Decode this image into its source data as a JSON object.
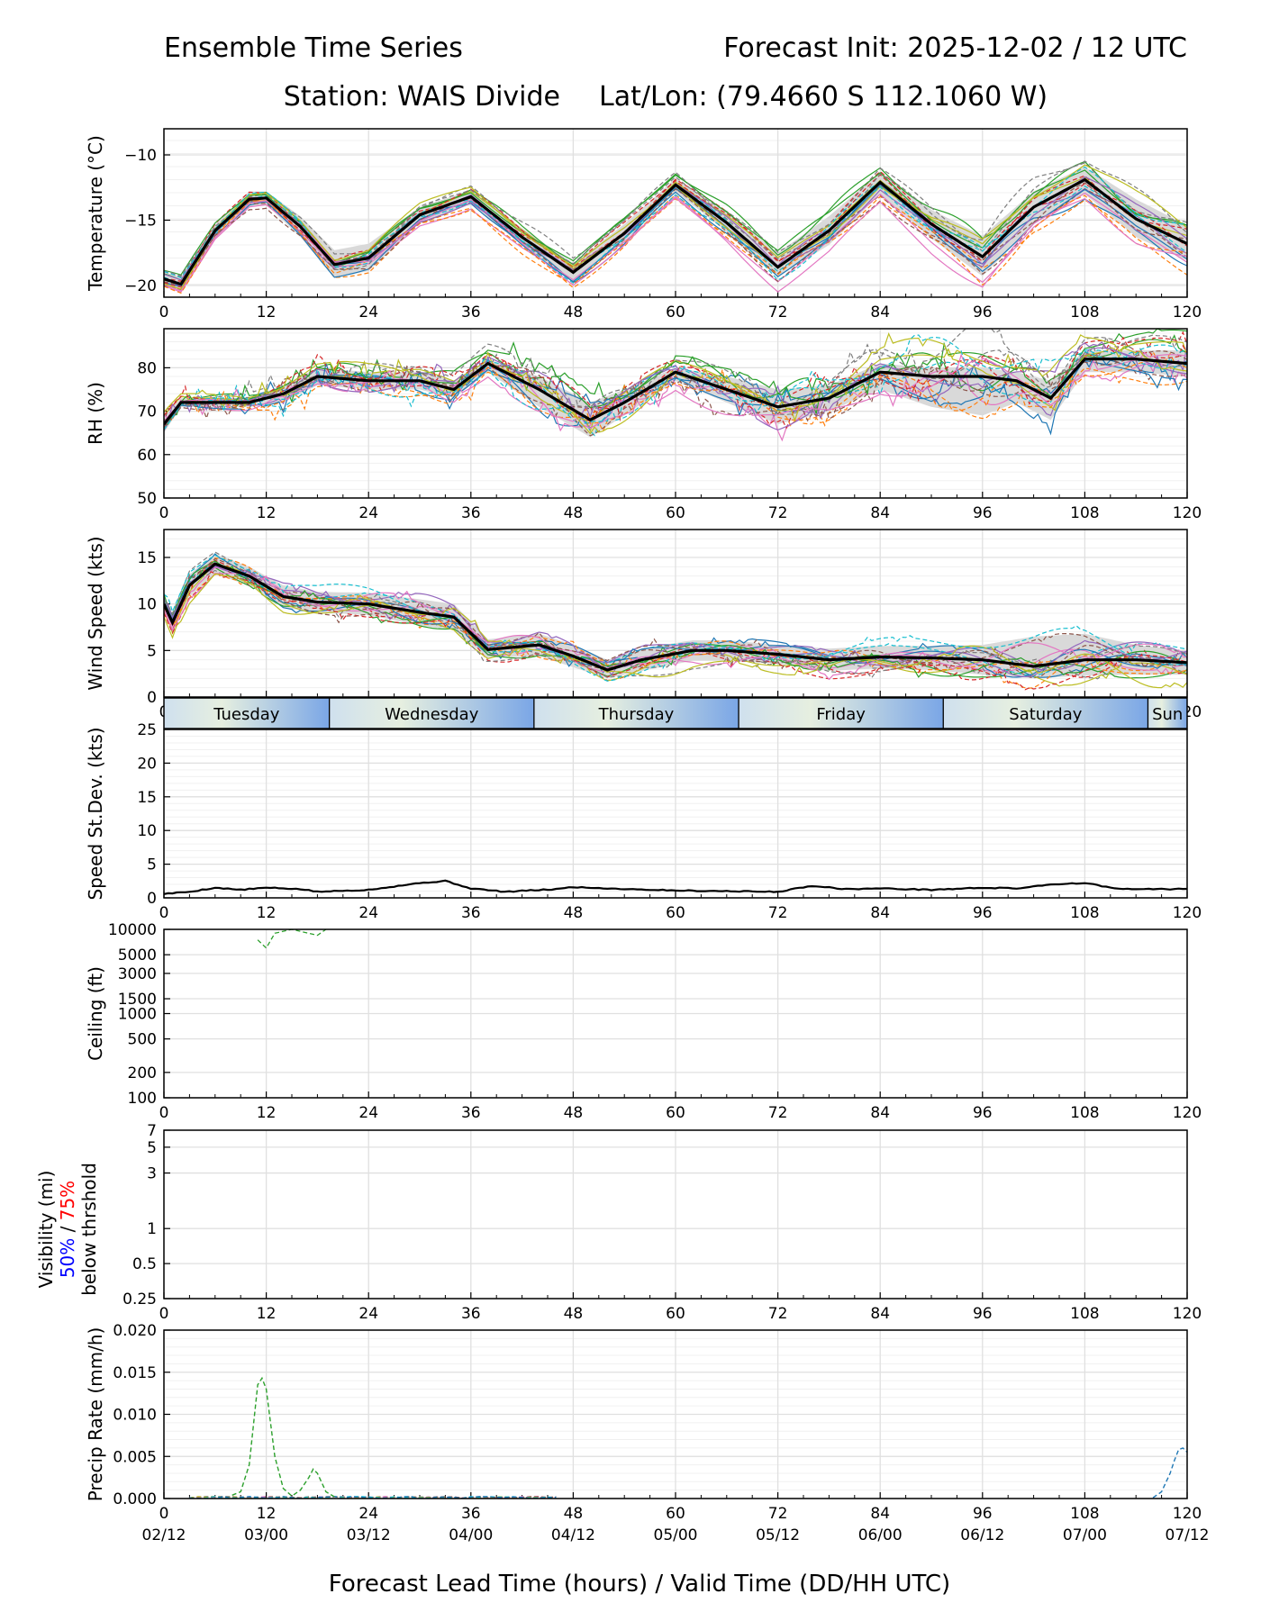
{
  "header": {
    "title_left": "Ensemble Time Series",
    "title_right": "Forecast Init: 2025-12-02 / 12 UTC",
    "station": "Station: WAIS Divide",
    "latlon": "Lat/Lon: (79.4660 S 112.1060 W)"
  },
  "xaxis": {
    "label": "Forecast Lead Time (hours) / Valid Time (DD/HH UTC)",
    "xlim": [
      0,
      120
    ],
    "ticks": [
      0,
      12,
      24,
      36,
      48,
      60,
      72,
      84,
      96,
      108,
      120
    ],
    "tick_labels": [
      "0",
      "12",
      "24",
      "36",
      "48",
      "60",
      "72",
      "84",
      "96",
      "108",
      "120"
    ],
    "valid_time_labels": [
      "02/12",
      "03/00",
      "03/12",
      "04/00",
      "04/12",
      "05/00",
      "05/12",
      "06/00",
      "06/12",
      "07/00",
      "07/12"
    ]
  },
  "days_strip": {
    "labels": [
      "Tuesday",
      "Wednesday",
      "Thursday",
      "Friday",
      "Saturday",
      "Sun"
    ],
    "boundaries_hours": [
      19.4,
      43.4,
      67.4,
      91.4,
      115.4
    ]
  },
  "visibility_label": {
    "main": "Visibility (mi)",
    "p50": "50%",
    "sep": " / ",
    "p75": "75%",
    "sub": "below thrshold",
    "p50_color": "#0000ff",
    "p75_color": "#ff0000"
  },
  "colors": {
    "mean": "#000000",
    "spread": "#d9d9d9",
    "grid": "#e0e0e0",
    "members": [
      "#1f77b4",
      "#ff7f0e",
      "#2ca02c",
      "#d62728",
      "#9467bd",
      "#8c564b",
      "#e377c2",
      "#7f7f7f",
      "#bcbd22",
      "#17becf"
    ]
  },
  "chart_data": [
    {
      "type": "line",
      "name": "temperature",
      "ylabel": "Temperature (°C)",
      "ylim": [
        -20.9,
        -8
      ],
      "yticks": [
        -20,
        -15,
        -10
      ],
      "ytick_labels": [
        "−20",
        "−15",
        "−10"
      ],
      "x": [
        0,
        2,
        6,
        10,
        12,
        16,
        20,
        24,
        30,
        36,
        42,
        48,
        54,
        60,
        66,
        72,
        78,
        84,
        90,
        96,
        102,
        108,
        114,
        120
      ],
      "mean": [
        -19.5,
        -19.9,
        -15.8,
        -13.4,
        -13.3,
        -15.5,
        -18.4,
        -17.9,
        -14.6,
        -13.2,
        -16.3,
        -19.0,
        -16.0,
        -12.3,
        -15.2,
        -18.6,
        -15.8,
        -12.1,
        -15.3,
        -17.8,
        -14.0,
        -11.9,
        -14.9,
        -16.8
      ],
      "spread_hi": [
        -19.0,
        -19.3,
        -15.3,
        -12.8,
        -12.8,
        -14.7,
        -17.3,
        -16.8,
        -14.0,
        -12.7,
        -15.6,
        -18.3,
        -15.3,
        -11.8,
        -14.4,
        -17.5,
        -14.7,
        -11.3,
        -14.2,
        -16.2,
        -12.8,
        -10.9,
        -13.4,
        -15.4
      ],
      "spread_lo": [
        -20.0,
        -20.4,
        -16.4,
        -14.0,
        -13.8,
        -16.3,
        -19.4,
        -18.9,
        -15.2,
        -13.8,
        -16.9,
        -19.6,
        -16.6,
        -12.8,
        -15.9,
        -19.3,
        -16.9,
        -13.0,
        -16.4,
        -19.3,
        -15.3,
        -13.0,
        -16.3,
        -18.1
      ],
      "member_count": 20
    },
    {
      "type": "line",
      "name": "relative_humidity",
      "ylabel": "RH (%)",
      "ylim": [
        50,
        89
      ],
      "yticks": [
        50,
        60,
        70,
        80
      ],
      "ytick_labels": [
        "50",
        "60",
        "70",
        "80"
      ],
      "x": [
        0,
        2,
        6,
        10,
        14,
        18,
        24,
        30,
        34,
        38,
        44,
        50,
        54,
        60,
        66,
        72,
        78,
        84,
        90,
        96,
        100,
        104,
        108,
        114,
        120
      ],
      "mean": [
        67,
        72,
        72,
        72,
        74,
        78,
        77,
        77,
        75,
        81,
        75,
        68,
        72,
        79,
        75,
        71,
        73,
        79,
        78,
        78,
        77,
        73,
        82,
        82,
        81
      ],
      "spread_hi": [
        69,
        73,
        73,
        73,
        76,
        80,
        79,
        79,
        77,
        82,
        78,
        72,
        75,
        80,
        78,
        75,
        76,
        81,
        80,
        80,
        79,
        77,
        84,
        84,
        84
      ],
      "spread_lo": [
        65,
        71,
        71,
        71,
        72,
        76,
        75,
        75,
        73,
        79,
        71,
        64,
        69,
        77,
        72,
        67,
        70,
        75,
        71,
        69,
        72,
        68,
        79,
        79,
        78
      ],
      "member_count": 20
    },
    {
      "type": "line",
      "name": "wind_speed",
      "ylabel": "Wind Speed (kts)",
      "ylim": [
        0,
        18
      ],
      "yticks": [
        0,
        5,
        10,
        15
      ],
      "ytick_labels": [
        "0",
        "5",
        "10",
        "15"
      ],
      "x": [
        0,
        1,
        3,
        6,
        10,
        14,
        18,
        24,
        30,
        34,
        38,
        44,
        48,
        52,
        56,
        62,
        66,
        72,
        78,
        84,
        90,
        96,
        102,
        108,
        114,
        120
      ],
      "mean": [
        10.0,
        8.0,
        12.0,
        14.3,
        13.0,
        10.8,
        10.2,
        10.0,
        9.1,
        8.6,
        5.1,
        5.6,
        4.4,
        2.9,
        4.0,
        5.0,
        5.0,
        4.6,
        4.0,
        4.3,
        4.2,
        4.0,
        3.3,
        4.0,
        4.0,
        3.7
      ],
      "spread_hi": [
        10.8,
        9.0,
        13.2,
        15.4,
        14.0,
        12.0,
        11.3,
        11.2,
        10.5,
        10.0,
        6.2,
        6.8,
        5.6,
        4.0,
        5.2,
        6.1,
        6.1,
        5.6,
        5.2,
        5.5,
        5.5,
        5.6,
        6.5,
        6.8,
        5.6,
        5.0
      ],
      "spread_lo": [
        9.2,
        7.2,
        10.8,
        13.2,
        12.0,
        9.6,
        9.1,
        8.8,
        7.7,
        7.2,
        4.2,
        4.4,
        3.2,
        2.0,
        2.8,
        3.9,
        3.9,
        3.6,
        2.8,
        3.1,
        2.9,
        2.4,
        2.0,
        2.3,
        2.4,
        2.4
      ],
      "member_count": 20
    },
    {
      "type": "line",
      "name": "speed_std_dev",
      "ylabel": "Speed St.Dev. (kts)",
      "ylim": [
        0,
        25
      ],
      "yticks": [
        0,
        5,
        10,
        15,
        20,
        25
      ],
      "ytick_labels": [
        "0",
        "5",
        "10",
        "15",
        "20",
        "25"
      ],
      "x": [
        0,
        3,
        6,
        9,
        12,
        16,
        18,
        24,
        30,
        33,
        36,
        40,
        46,
        48,
        52,
        60,
        66,
        72,
        76,
        80,
        84,
        90,
        96,
        100,
        104,
        108,
        112,
        120
      ],
      "values": [
        0.6,
        0.9,
        1.5,
        1.2,
        1.5,
        1.3,
        0.9,
        1.2,
        2.2,
        2.5,
        1.4,
        0.9,
        1.3,
        1.6,
        1.4,
        1.1,
        1.0,
        0.9,
        1.8,
        1.3,
        1.4,
        1.2,
        1.5,
        1.4,
        2.0,
        2.2,
        1.3,
        1.3
      ]
    },
    {
      "type": "line",
      "name": "ceiling",
      "ylabel": "Ceiling (ft)",
      "yscale": "log",
      "ylim": [
        100,
        10000
      ],
      "yticks": [
        100,
        200,
        500,
        1000,
        1500,
        3000,
        5000,
        10000
      ],
      "ytick_labels": [
        "100",
        "200",
        "500",
        "1000",
        "1500",
        "3000",
        "5000",
        "10000"
      ],
      "x": [
        11,
        12,
        13,
        15,
        18,
        19
      ],
      "values": [
        7500,
        6000,
        9000,
        10000,
        8500,
        10000
      ]
    },
    {
      "type": "line",
      "name": "visibility",
      "yscale": "log",
      "ylim": [
        0.25,
        7
      ],
      "yticks": [
        0.25,
        0.5,
        1,
        3,
        5,
        7
      ],
      "ytick_labels": [
        "0.25",
        "0.5",
        "1",
        "3",
        "5",
        "7"
      ]
    },
    {
      "type": "line",
      "name": "precip_rate",
      "ylabel": "Precip Rate (mm/h)",
      "ylim": [
        0,
        0.02
      ],
      "yticks": [
        0,
        0.005,
        0.01,
        0.015,
        0.02
      ],
      "ytick_labels": [
        "0.000",
        "0.005",
        "0.010",
        "0.015",
        "0.020"
      ],
      "series": [
        {
          "name": "member-green",
          "x": [
            8,
            9,
            10,
            11,
            11.5,
            12,
            13,
            14,
            15,
            16,
            17,
            17.5,
            18,
            19,
            20
          ],
          "values": [
            0.0004,
            0.0008,
            0.004,
            0.0135,
            0.0143,
            0.013,
            0.005,
            0.0012,
            0.0003,
            0.001,
            0.0025,
            0.0035,
            0.003,
            0.0008,
            0.0002
          ]
        },
        {
          "name": "member-blue",
          "x": [
            116,
            117,
            118,
            118.5,
            119,
            119.5,
            120
          ],
          "values": [
            0.0001,
            0.0008,
            0.003,
            0.0045,
            0.0058,
            0.006,
            0.0055
          ]
        }
      ]
    }
  ]
}
